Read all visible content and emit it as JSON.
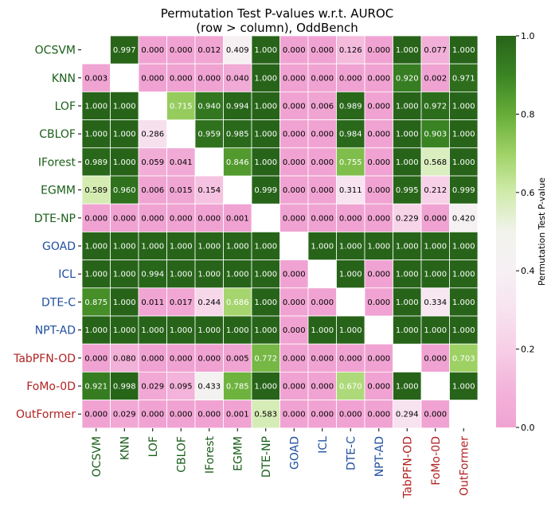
{
  "chart_data": {
    "type": "heatmap",
    "title": "Permutation Test P-values w.r.t. AUROC",
    "subtitle": "(row > column), OddBench",
    "colorbar_label": "Permutation Test P-value",
    "colorbar_ticks": [
      "0.0",
      "0.2",
      "0.4",
      "0.6",
      "0.8",
      "1.0"
    ],
    "colorbar_range": [
      0,
      1
    ],
    "labels": [
      "OCSVM",
      "KNN",
      "LOF",
      "CBLOF",
      "IForest",
      "EGMM",
      "DTE-NP",
      "GOAD",
      "ICL",
      "DTE-C",
      "NPT-AD",
      "TabPFN-OD",
      "FoMo-0D",
      "OutFormer"
    ],
    "label_colors": [
      "#1a5e1a",
      "#1a5e1a",
      "#1a5e1a",
      "#1a5e1a",
      "#1a5e1a",
      "#1a5e1a",
      "#1a5e1a",
      "#1f4e9e",
      "#1f4e9e",
      "#1f4e9e",
      "#1f4e9e",
      "#b22222",
      "#b22222",
      "#b22222"
    ],
    "values": [
      [
        null,
        0.997,
        0.0,
        0.0,
        0.012,
        0.409,
        1.0,
        0.0,
        0.0,
        0.126,
        0.0,
        1.0,
        0.077,
        1.0
      ],
      [
        0.003,
        null,
        0.0,
        0.0,
        0.0,
        0.04,
        1.0,
        0.0,
        0.0,
        0.0,
        0.0,
        0.92,
        0.002,
        0.971
      ],
      [
        1.0,
        1.0,
        null,
        0.715,
        0.94,
        0.994,
        1.0,
        0.0,
        0.006,
        0.989,
        0.0,
        1.0,
        0.972,
        1.0
      ],
      [
        1.0,
        1.0,
        0.286,
        null,
        0.959,
        0.985,
        1.0,
        0.0,
        0.0,
        0.984,
        0.0,
        1.0,
        0.903,
        1.0
      ],
      [
        0.989,
        1.0,
        0.059,
        0.041,
        null,
        0.846,
        1.0,
        0.0,
        0.0,
        0.755,
        0.0,
        1.0,
        0.568,
        1.0
      ],
      [
        0.589,
        0.96,
        0.006,
        0.015,
        0.154,
        null,
        0.999,
        0.0,
        0.0,
        0.311,
        0.0,
        0.995,
        0.212,
        0.999
      ],
      [
        0.0,
        0.0,
        0.0,
        0.0,
        0.0,
        0.001,
        null,
        0.0,
        0.0,
        0.0,
        0.0,
        0.229,
        0.0,
        0.42
      ],
      [
        1.0,
        1.0,
        1.0,
        1.0,
        1.0,
        1.0,
        1.0,
        null,
        1.0,
        1.0,
        1.0,
        1.0,
        1.0,
        1.0
      ],
      [
        1.0,
        1.0,
        0.994,
        1.0,
        1.0,
        1.0,
        1.0,
        0.0,
        null,
        1.0,
        0.0,
        1.0,
        1.0,
        1.0
      ],
      [
        0.875,
        1.0,
        0.011,
        0.017,
        0.244,
        0.686,
        1.0,
        0.0,
        0.0,
        null,
        0.0,
        1.0,
        0.334,
        1.0
      ],
      [
        1.0,
        1.0,
        1.0,
        1.0,
        1.0,
        1.0,
        1.0,
        0.0,
        1.0,
        1.0,
        null,
        1.0,
        1.0,
        1.0
      ],
      [
        0.0,
        0.08,
        0.0,
        0.0,
        0.0,
        0.005,
        0.772,
        0.0,
        0.0,
        0.0,
        0.0,
        null,
        0.0,
        0.703
      ],
      [
        0.921,
        0.998,
        0.029,
        0.095,
        0.433,
        0.785,
        1.0,
        0.0,
        0.0,
        0.67,
        0.0,
        1.0,
        null,
        1.0
      ],
      [
        0.0,
        0.029,
        0.0,
        0.0,
        0.0,
        0.001,
        0.583,
        0.0,
        0.0,
        0.0,
        0.0,
        0.294,
        0.0,
        null
      ]
    ]
  }
}
